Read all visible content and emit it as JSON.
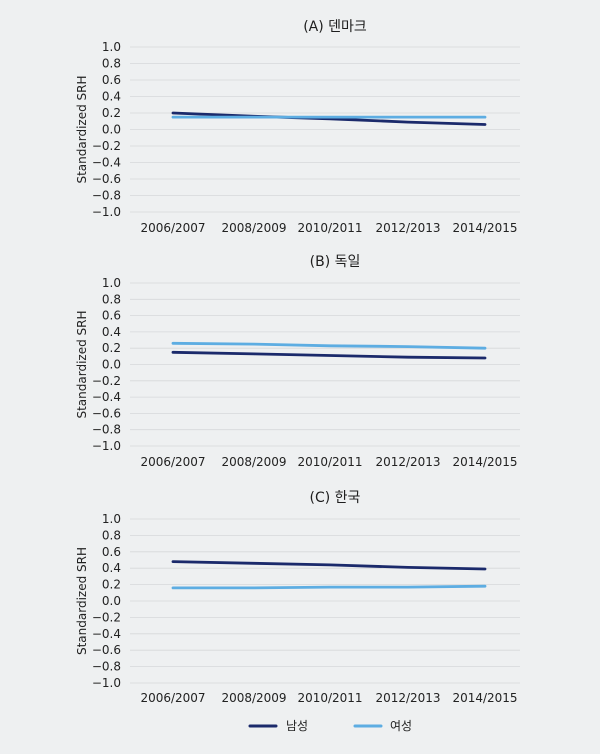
{
  "chart_data": [
    {
      "type": "line",
      "title": "(A) 덴마크",
      "ylabel": "Standardized SRH",
      "xlabel": "",
      "categories": [
        "2006/2007",
        "2008/2009",
        "2010/2011",
        "2012/2013",
        "2014/2015"
      ],
      "ylim": [
        -1.0,
        1.0
      ],
      "yticks": [
        "1.0",
        "0.8",
        "0.6",
        "0.4",
        "0.2",
        "0.0",
        "−0.2",
        "−0.4",
        "−0.6",
        "−0.8",
        "−1.0"
      ],
      "grid": true,
      "series": [
        {
          "name": "남성",
          "values": [
            0.2,
            0.16,
            0.13,
            0.09,
            0.06
          ]
        },
        {
          "name": "여성",
          "values": [
            0.15,
            0.15,
            0.15,
            0.15,
            0.15
          ]
        }
      ]
    },
    {
      "type": "line",
      "title": "(B) 독일",
      "ylabel": "Standardized SRH",
      "xlabel": "",
      "categories": [
        "2006/2007",
        "2008/2009",
        "2010/2011",
        "2012/2013",
        "2014/2015"
      ],
      "ylim": [
        -1.0,
        1.0
      ],
      "yticks": [
        "1.0",
        "0.8",
        "0.6",
        "0.4",
        "0.2",
        "0.0",
        "−0.2",
        "−0.4",
        "−0.6",
        "−0.8",
        "−1.0"
      ],
      "grid": true,
      "series": [
        {
          "name": "남성",
          "values": [
            0.15,
            0.13,
            0.11,
            0.09,
            0.08
          ]
        },
        {
          "name": "여성",
          "values": [
            0.26,
            0.25,
            0.23,
            0.22,
            0.2
          ]
        }
      ]
    },
    {
      "type": "line",
      "title": "(C) 한국",
      "ylabel": "Standardized SRH",
      "xlabel": "",
      "categories": [
        "2006/2007",
        "2008/2009",
        "2010/2011",
        "2012/2013",
        "2014/2015"
      ],
      "ylim": [
        -1.0,
        1.0
      ],
      "yticks": [
        "1.0",
        "0.8",
        "0.6",
        "0.4",
        "0.2",
        "0.0",
        "−0.2",
        "−0.4",
        "−0.6",
        "−0.8",
        "−1.0"
      ],
      "grid": true,
      "series": [
        {
          "name": "남성",
          "values": [
            0.48,
            0.46,
            0.44,
            0.41,
            0.39
          ]
        },
        {
          "name": "여성",
          "values": [
            0.16,
            0.16,
            0.17,
            0.17,
            0.18
          ]
        }
      ]
    }
  ],
  "legend": {
    "items": [
      {
        "label": "남성",
        "color": "#1b2a6b"
      },
      {
        "label": "여성",
        "color": "#5dade2"
      }
    ]
  },
  "colors": {
    "male": "#1b2a6b",
    "female": "#5dade2",
    "grid": "#d6d8da",
    "background": "#eef0f1"
  }
}
